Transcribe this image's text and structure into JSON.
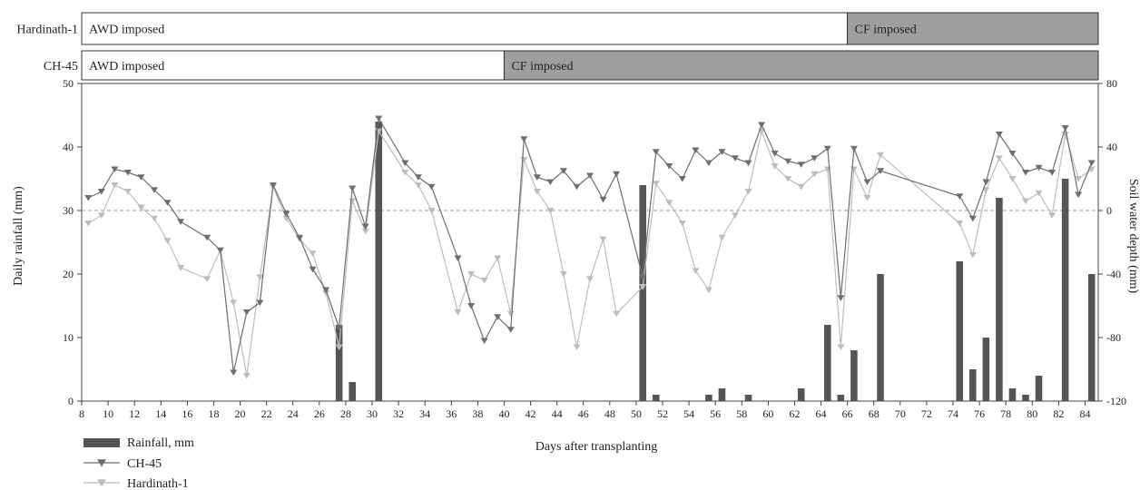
{
  "chart_data": {
    "type": "bar+line",
    "title": "",
    "xlabel": "Days after transplanting",
    "ylabel_left": "Daily rainfall (mm)",
    "ylabel_right": "Soil water depth (mm)",
    "x_range": [
      8,
      85
    ],
    "x_ticks": [
      8,
      10,
      12,
      14,
      16,
      18,
      20,
      22,
      24,
      26,
      28,
      30,
      32,
      34,
      36,
      38,
      40,
      42,
      44,
      46,
      48,
      50,
      52,
      54,
      56,
      58,
      60,
      62,
      64,
      66,
      68,
      70,
      72,
      74,
      76,
      78,
      80,
      82,
      84
    ],
    "ylim_left": [
      0,
      50
    ],
    "y_ticks_left": [
      0,
      10,
      20,
      30,
      40,
      50
    ],
    "ylim_right": [
      -120,
      80
    ],
    "y_ticks_right": [
      -120,
      -80,
      -40,
      0,
      40,
      80
    ],
    "reference_line_right": 0,
    "regime_bars": [
      {
        "name": "Hardinath-1",
        "segments": [
          {
            "label": "AWD imposed",
            "from": 8,
            "to": 66,
            "fill": "#ffffff"
          },
          {
            "label": "CF imposed",
            "from": 66,
            "to": 85,
            "fill": "#9e9e9e"
          }
        ]
      },
      {
        "name": "CH-45",
        "segments": [
          {
            "label": "AWD imposed",
            "from": 8,
            "to": 40,
            "fill": "#ffffff"
          },
          {
            "label": "CF imposed",
            "from": 40,
            "to": 85,
            "fill": "#9e9e9e"
          }
        ]
      }
    ],
    "rainfall": {
      "name": "Rainfall, mm",
      "color": "#555555",
      "points": [
        [
          27.5,
          12
        ],
        [
          28.5,
          3
        ],
        [
          30.5,
          44
        ],
        [
          50.5,
          34
        ],
        [
          51.5,
          1
        ],
        [
          55.5,
          1
        ],
        [
          56.5,
          2
        ],
        [
          58.5,
          1
        ],
        [
          62.5,
          2
        ],
        [
          64.5,
          12
        ],
        [
          65.5,
          1
        ],
        [
          66.5,
          8
        ],
        [
          68.5,
          20
        ],
        [
          74.5,
          22
        ],
        [
          75.5,
          5
        ],
        [
          76.5,
          10
        ],
        [
          77.5,
          32
        ],
        [
          78.5,
          2
        ],
        [
          79.5,
          1
        ],
        [
          80.5,
          4
        ],
        [
          82.5,
          35
        ],
        [
          84.5,
          20
        ]
      ]
    },
    "series": [
      {
        "name": "CH-45",
        "color": "#6e6e6e",
        "marker": "triangle-down",
        "points": [
          [
            8.5,
            8
          ],
          [
            9.5,
            12
          ],
          [
            10.5,
            26
          ],
          [
            11.5,
            24
          ],
          [
            12.5,
            21
          ],
          [
            13.5,
            13
          ],
          [
            14.5,
            5
          ],
          [
            15.5,
            -7
          ],
          [
            17.5,
            -17
          ],
          [
            18.5,
            -25
          ],
          [
            19.5,
            -102
          ],
          [
            20.5,
            -64
          ],
          [
            21.5,
            -58
          ],
          [
            22.5,
            16
          ],
          [
            23.5,
            -2
          ],
          [
            24.5,
            -17
          ],
          [
            25.5,
            -37
          ],
          [
            26.5,
            -50
          ],
          [
            27.5,
            -74
          ],
          [
            28.5,
            14
          ],
          [
            29.5,
            -10
          ],
          [
            30.5,
            58
          ],
          [
            32.5,
            30
          ],
          [
            33.5,
            21
          ],
          [
            34.5,
            15
          ],
          [
            36.5,
            -30
          ],
          [
            37.5,
            -60
          ],
          [
            38.5,
            -82
          ],
          [
            39.5,
            -67
          ],
          [
            40.5,
            -75
          ],
          [
            41.5,
            45
          ],
          [
            42.5,
            21
          ],
          [
            43.5,
            18
          ],
          [
            44.5,
            25
          ],
          [
            45.5,
            15
          ],
          [
            46.5,
            22
          ],
          [
            47.5,
            7
          ],
          [
            48.5,
            23
          ],
          [
            50.5,
            -42
          ],
          [
            51.5,
            37
          ],
          [
            52.5,
            28
          ],
          [
            53.5,
            20
          ],
          [
            54.5,
            38
          ],
          [
            55.5,
            30
          ],
          [
            56.5,
            37
          ],
          [
            57.5,
            33
          ],
          [
            58.5,
            30
          ],
          [
            59.5,
            54
          ],
          [
            60.5,
            36
          ],
          [
            61.5,
            31
          ],
          [
            62.5,
            29
          ],
          [
            63.5,
            33
          ],
          [
            64.5,
            39
          ],
          [
            65.5,
            -55
          ],
          [
            66.5,
            39
          ],
          [
            67.5,
            18
          ],
          [
            68.5,
            25
          ],
          [
            74.5,
            9
          ],
          [
            75.5,
            -5
          ],
          [
            76.5,
            18
          ],
          [
            77.5,
            48
          ],
          [
            78.5,
            36
          ],
          [
            79.5,
            24
          ],
          [
            80.5,
            27
          ],
          [
            81.5,
            24
          ],
          [
            82.5,
            52
          ],
          [
            83.5,
            10
          ],
          [
            84.5,
            30
          ]
        ]
      },
      {
        "name": "Hardinath-1",
        "color": "#bdbdbd",
        "marker": "triangle-down",
        "points": [
          [
            8.5,
            -8
          ],
          [
            9.5,
            -3
          ],
          [
            10.5,
            16
          ],
          [
            11.5,
            12
          ],
          [
            12.5,
            2
          ],
          [
            13.5,
            -5
          ],
          [
            14.5,
            -19
          ],
          [
            15.5,
            -36
          ],
          [
            17.5,
            -43
          ],
          [
            18.5,
            -25
          ],
          [
            19.5,
            -58
          ],
          [
            20.5,
            -104
          ],
          [
            21.5,
            -42
          ],
          [
            22.5,
            15
          ],
          [
            23.5,
            -5
          ],
          [
            24.5,
            -18
          ],
          [
            25.5,
            -27
          ],
          [
            26.5,
            -52
          ],
          [
            27.5,
            -86
          ],
          [
            28.5,
            6
          ],
          [
            29.5,
            -13
          ],
          [
            30.5,
            50
          ],
          [
            32.5,
            24
          ],
          [
            33.5,
            16
          ],
          [
            34.5,
            0
          ],
          [
            36.5,
            -64
          ],
          [
            37.5,
            -40
          ],
          [
            38.5,
            -44
          ],
          [
            39.5,
            -30
          ],
          [
            40.5,
            -65
          ],
          [
            41.5,
            32
          ],
          [
            42.5,
            12
          ],
          [
            43.5,
            0
          ],
          [
            44.5,
            -40
          ],
          [
            45.5,
            -86
          ],
          [
            46.5,
            -43
          ],
          [
            47.5,
            -18
          ],
          [
            48.5,
            -65
          ],
          [
            50.5,
            -48
          ],
          [
            51.5,
            17
          ],
          [
            52.5,
            5
          ],
          [
            53.5,
            -8
          ],
          [
            54.5,
            -38
          ],
          [
            55.5,
            -50
          ],
          [
            56.5,
            -17
          ],
          [
            57.5,
            -3
          ],
          [
            58.5,
            12
          ],
          [
            59.5,
            50
          ],
          [
            60.5,
            28
          ],
          [
            61.5,
            20
          ],
          [
            62.5,
            15
          ],
          [
            63.5,
            23
          ],
          [
            64.5,
            26
          ],
          [
            65.5,
            -86
          ],
          [
            66.5,
            26
          ],
          [
            67.5,
            8
          ],
          [
            68.5,
            35
          ],
          [
            74.5,
            -8
          ],
          [
            75.5,
            -28
          ],
          [
            76.5,
            13
          ],
          [
            77.5,
            33
          ],
          [
            78.5,
            20
          ],
          [
            79.5,
            6
          ],
          [
            80.5,
            11
          ],
          [
            81.5,
            -3
          ],
          [
            82.5,
            48
          ],
          [
            83.5,
            20
          ],
          [
            84.5,
            26
          ]
        ]
      }
    ],
    "legend": {
      "placement": "bottom-left",
      "entries": [
        "Rainfall, mm",
        "CH-45",
        "Hardinath-1"
      ]
    }
  }
}
